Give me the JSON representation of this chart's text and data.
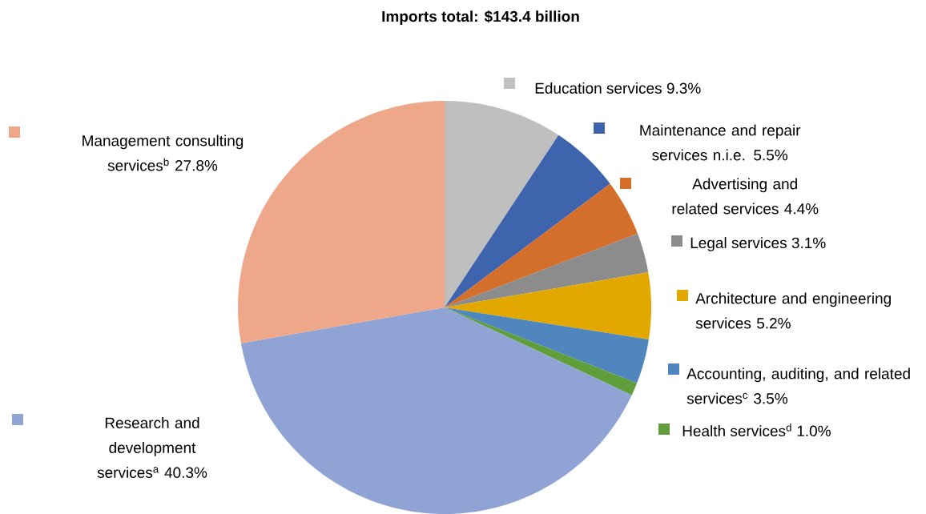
{
  "chart_data": {
    "type": "pie",
    "title": "Imports total: $143.4 billion",
    "categories": [
      "Education services",
      "Maintenance and repair services n.i.e.",
      "Advertising and related services",
      "Legal services",
      "Architecture and engineering services",
      "Accounting, auditing, and related services$^{c}$",
      "Health services$^{d}$",
      "Research and development services$^{a}$",
      "Management consulting services$^{b}$"
    ],
    "values": [
      9.3,
      5.5,
      4.4,
      3.1,
      5.2,
      3.5,
      1.0,
      40.3,
      27.8
    ],
    "value_labels": [
      "9.3%",
      "5.5%",
      "4.4%",
      "3.1%",
      "5.2%",
      "3.5%",
      "1.0%",
      "40.3%",
      "27.8%"
    ],
    "legend": "right",
    "colors": [
      "#bfbfbf",
      "#3f64ae",
      "#d36e2b",
      "#8c8c8c",
      "#e3a800",
      "#4e86bd",
      "#5f9e3a",
      "#8fa3d4",
      "#efa78a"
    ]
  }
}
